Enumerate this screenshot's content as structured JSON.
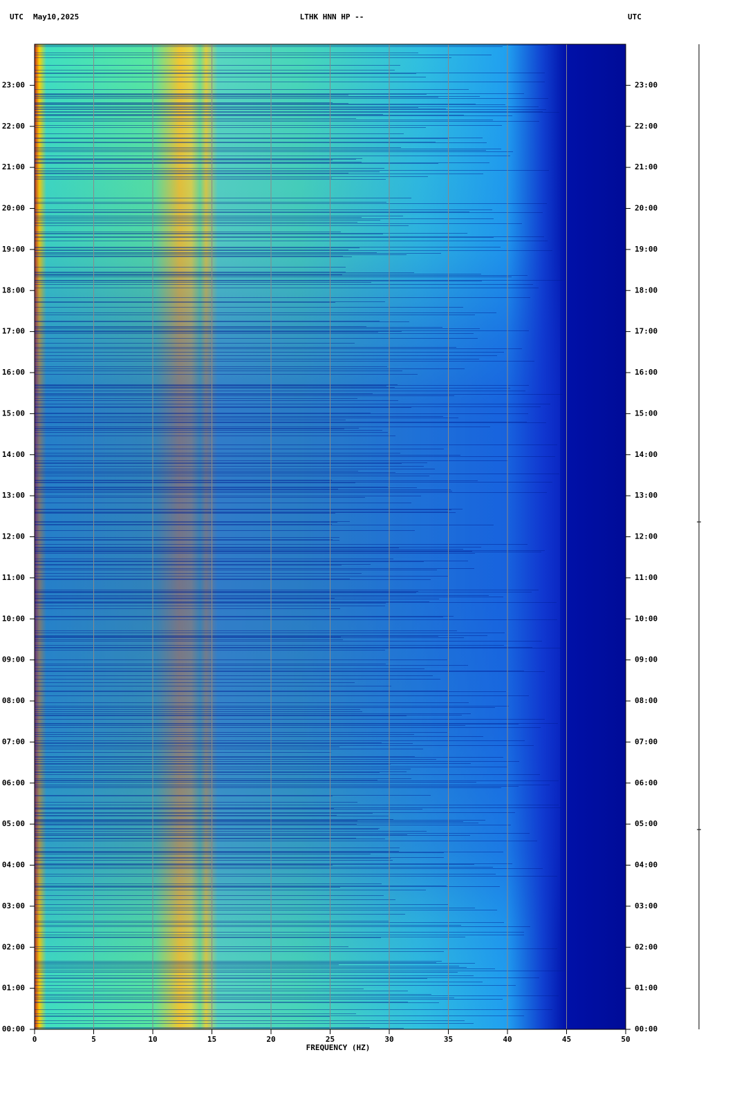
{
  "chart_data": {
    "type": "spectrogram",
    "title": "LTHK HNN HP --",
    "subtitle": "May10,2025",
    "y_label": "UTC",
    "y2_label": "UTC",
    "x_label": "FREQUENCY (HZ)",
    "xlim": [
      0,
      50
    ],
    "xticks": [
      0,
      5,
      10,
      15,
      20,
      25,
      30,
      35,
      40,
      45,
      50
    ],
    "ylim": [
      0,
      24
    ],
    "yticks": [
      {
        "value": 0,
        "label": "00:00"
      },
      {
        "value": 1,
        "label": "01:00"
      },
      {
        "value": 2,
        "label": "02:00"
      },
      {
        "value": 3,
        "label": "03:00"
      },
      {
        "value": 4,
        "label": "04:00"
      },
      {
        "value": 5,
        "label": "05:00"
      },
      {
        "value": 6,
        "label": "06:00"
      },
      {
        "value": 7,
        "label": "07:00"
      },
      {
        "value": 8,
        "label": "08:00"
      },
      {
        "value": 9,
        "label": "09:00"
      },
      {
        "value": 10,
        "label": "10:00"
      },
      {
        "value": 11,
        "label": "11:00"
      },
      {
        "value": 12,
        "label": "12:00"
      },
      {
        "value": 13,
        "label": "13:00"
      },
      {
        "value": 14,
        "label": "14:00"
      },
      {
        "value": 15,
        "label": "15:00"
      },
      {
        "value": 16,
        "label": "16:00"
      },
      {
        "value": 17,
        "label": "17:00"
      },
      {
        "value": 18,
        "label": "18:00"
      },
      {
        "value": 19,
        "label": "19:00"
      },
      {
        "value": 20,
        "label": "20:00"
      },
      {
        "value": 21,
        "label": "21:00"
      },
      {
        "value": 22,
        "label": "22:00"
      },
      {
        "value": 23,
        "label": "23:00"
      }
    ],
    "grid": true
  }
}
